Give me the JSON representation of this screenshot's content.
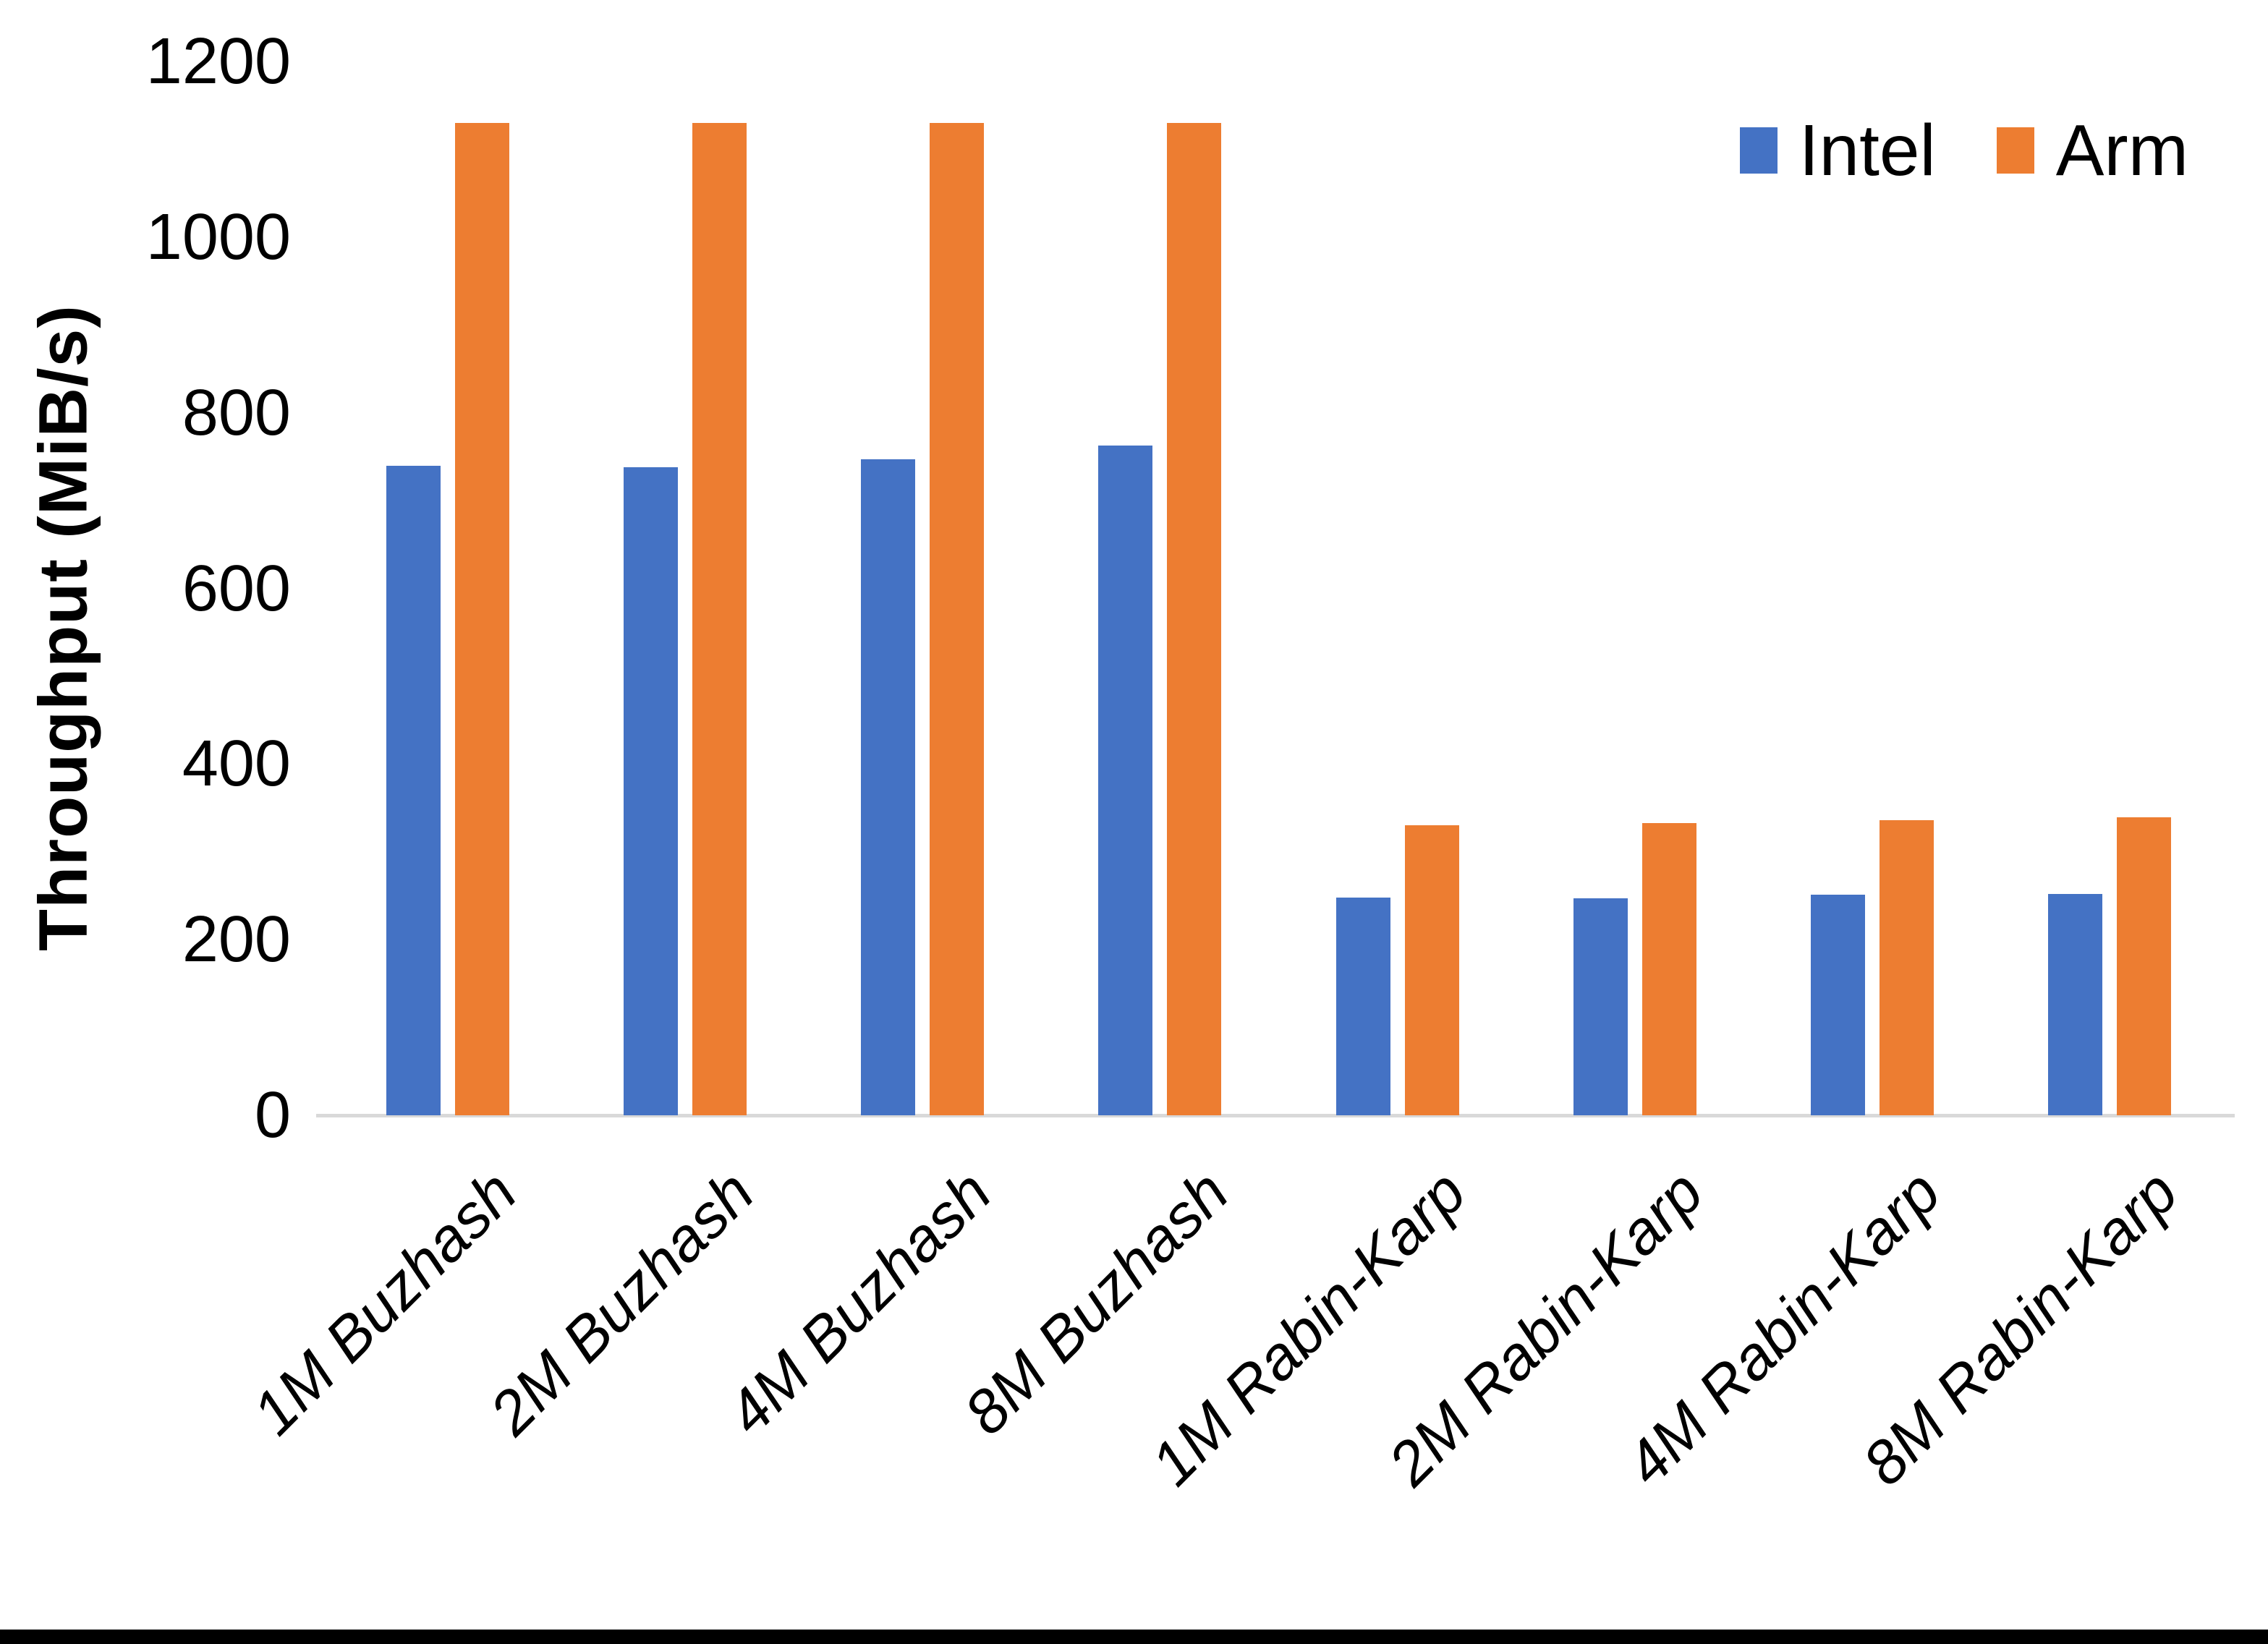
{
  "page": {
    "background_color": "#ffffff",
    "bottom_edge_color": "#000000"
  },
  "chart_data": {
    "type": "bar",
    "title": "",
    "xlabel": "",
    "ylabel": "Throughput (MiB/s)",
    "ylim": [
      0,
      1200
    ],
    "yticks": [
      0,
      200,
      400,
      600,
      800,
      1000,
      1200
    ],
    "grid": false,
    "axis_line_color": "#d9d9d9",
    "legend_position": "top-right",
    "categories": [
      "1M Buzhash",
      "2M Buzhash",
      "4M Buzhash",
      "8M Buzhash",
      "1M Rabin-Karp",
      "2M Rabin-Karp",
      "4M Rabin-Karp",
      "8M Rabin-Karp"
    ],
    "series": [
      {
        "name": "Intel",
        "color": "#4472C4",
        "values": [
          740,
          738,
          747,
          763,
          248,
          247,
          251,
          252
        ]
      },
      {
        "name": "Arm",
        "color": "#ED7D31",
        "values": [
          1130,
          1130,
          1130,
          1130,
          330,
          333,
          336,
          339
        ]
      }
    ]
  }
}
